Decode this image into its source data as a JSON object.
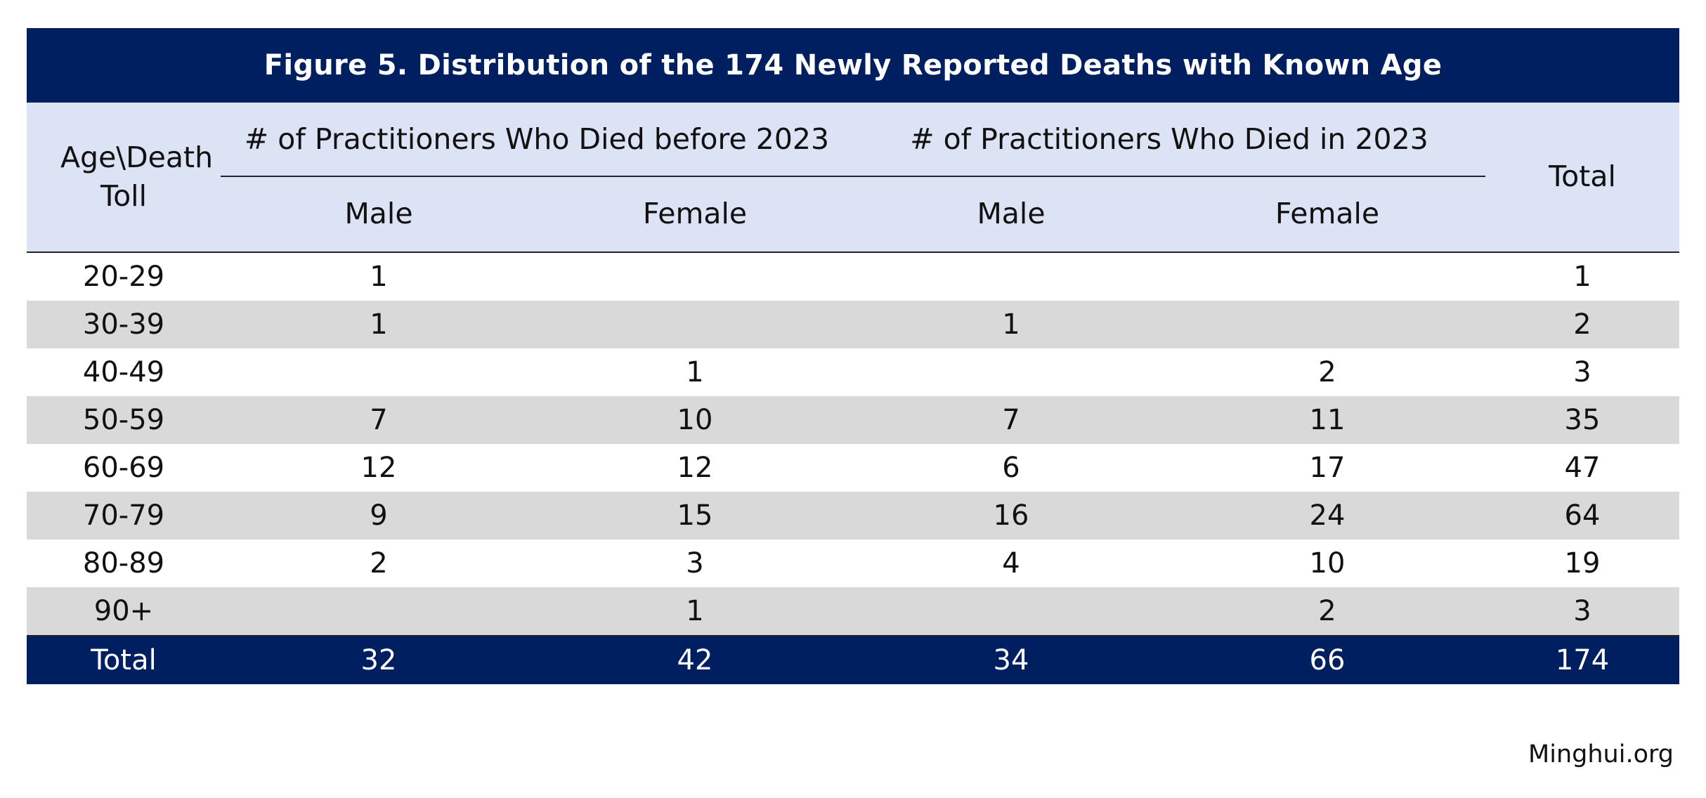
{
  "chart_data": {
    "type": "table",
    "title": "Figure 5. Distribution of the 174 Newly Reported Deaths with Known Age",
    "row_header_label": "Age\\Death Toll",
    "column_groups": [
      "# of Practitioners Who Died before 2023",
      "# of Practitioners Who Died in 2023"
    ],
    "columns": [
      "Male",
      "Female",
      "Male",
      "Female"
    ],
    "total_label": "Total",
    "rows": [
      {
        "age": "20-29",
        "values": [
          "1",
          "",
          "",
          ""
        ],
        "total": "1"
      },
      {
        "age": "30-39",
        "values": [
          "1",
          "",
          "1",
          ""
        ],
        "total": "2"
      },
      {
        "age": "40-49",
        "values": [
          "",
          "1",
          "",
          "2"
        ],
        "total": "3"
      },
      {
        "age": "50-59",
        "values": [
          "7",
          "10",
          "7",
          "11"
        ],
        "total": "35"
      },
      {
        "age": "60-69",
        "values": [
          "12",
          "12",
          "6",
          "17"
        ],
        "total": "47"
      },
      {
        "age": "70-79",
        "values": [
          "9",
          "15",
          "16",
          "24"
        ],
        "total": "64"
      },
      {
        "age": "80-89",
        "values": [
          "2",
          "3",
          "4",
          "10"
        ],
        "total": "19"
      },
      {
        "age": "90+",
        "values": [
          "",
          "1",
          "",
          "2"
        ],
        "total": "3"
      }
    ],
    "totals_row": {
      "label": "Total",
      "values": [
        "32",
        "42",
        "34",
        "66"
      ],
      "total": "174"
    }
  },
  "source": "Minghui.org",
  "colors": {
    "title_bg": "#001f60",
    "header_bg": "#dce3f4",
    "stripe": "#d9d9d9",
    "total_bg": "#001f60"
  }
}
